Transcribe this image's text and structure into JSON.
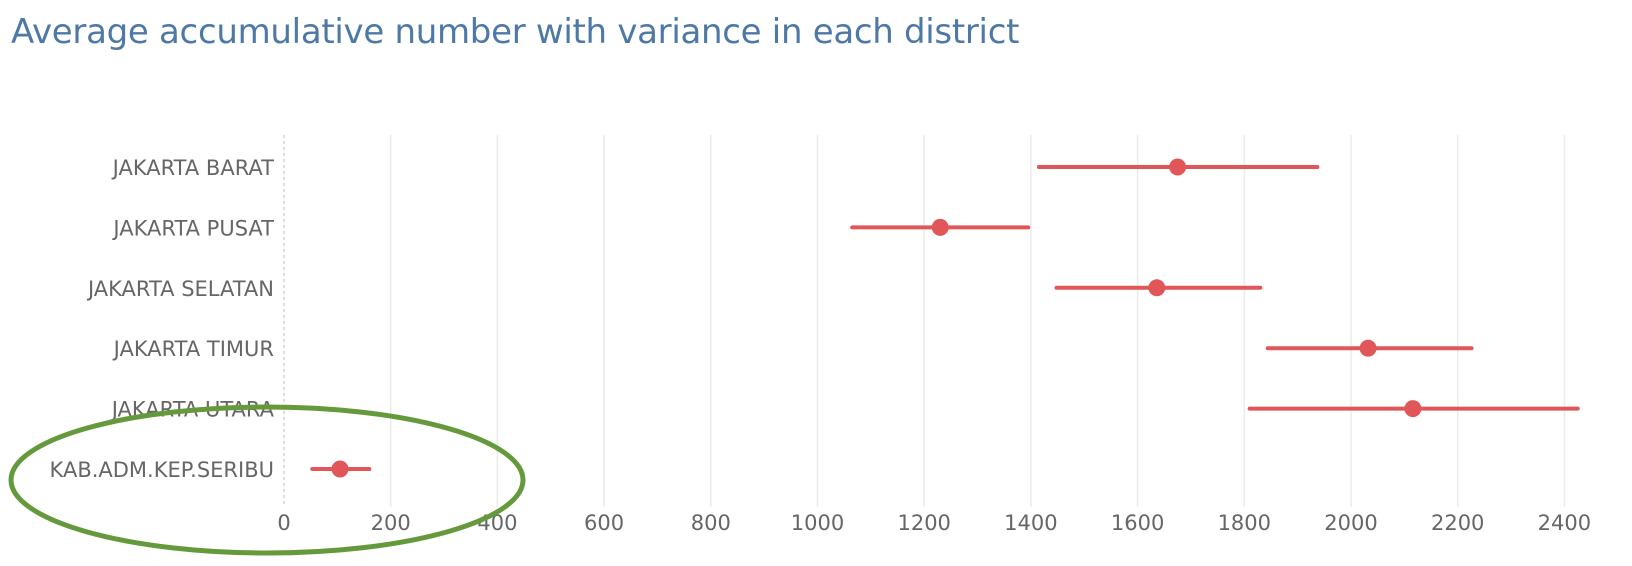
{
  "chart_data": {
    "type": "scatter",
    "title": "Average accumulative number with variance in each district",
    "xlabel": "",
    "ylabel": "",
    "xlim": [
      0,
      2450
    ],
    "xticks": [
      0,
      200,
      400,
      600,
      800,
      1000,
      1200,
      1400,
      1600,
      1800,
      2000,
      2200,
      2400
    ],
    "grid": true,
    "categories": [
      "JAKARTA BARAT",
      "JAKARTA PUSAT",
      "JAKARTA SELATAN",
      "JAKARTA TIMUR",
      "JAKARTA UTARA",
      "KAB.ADM.KEP.SERIBU"
    ],
    "series": [
      {
        "values": [
          1675,
          1230,
          1636,
          2032,
          2116,
          105
        ],
        "low": [
          1415,
          1065,
          1448,
          1844,
          1810,
          53
        ],
        "high": [
          1937,
          1395,
          1830,
          2226,
          2425,
          160
        ]
      }
    ],
    "colors": {
      "mark": "#e15759",
      "annotation": "#659a3c",
      "title": "#4e79a7"
    },
    "annotation": {
      "shape": "ellipse",
      "highlights": "KAB.ADM.KEP.SERIBU"
    }
  }
}
